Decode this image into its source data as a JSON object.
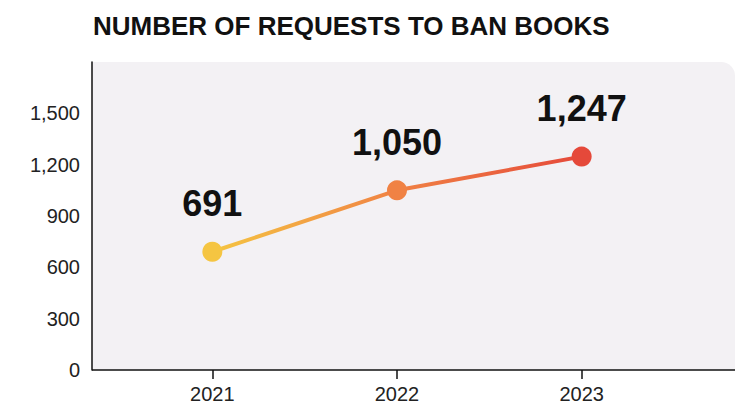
{
  "chart_data": {
    "type": "line",
    "title": "NUMBER OF REQUESTS TO BAN BOOKS",
    "categories": [
      "2021",
      "2022",
      "2023"
    ],
    "values": [
      691,
      1050,
      1247
    ],
    "value_labels": [
      "691",
      "1,050",
      "1,247"
    ],
    "colors": [
      "#f5c542",
      "#f08244",
      "#e5493a"
    ],
    "marker": "circle",
    "data_labels": true,
    "ylim": [
      0,
      1800
    ],
    "yticks": [
      0,
      300,
      600,
      900,
      {
        "value": 1200,
        "label": "1,200"
      },
      {
        "value": 1500,
        "label": "1,500"
      }
    ],
    "grid": false
  }
}
